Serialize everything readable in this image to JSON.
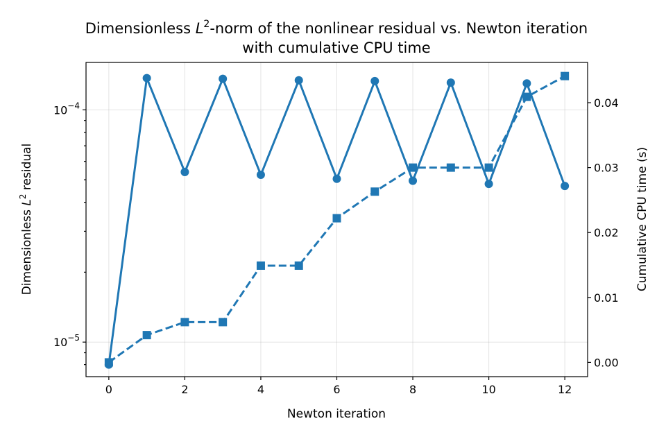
{
  "chart_data": {
    "type": "line",
    "title_line1_prefix": "Dimensionless ",
    "title_line1_math": "L",
    "title_line1_sup": "2",
    "title_line1_suffix": "-norm of the nonlinear residual vs. Newton iteration",
    "title_line2": "with cumulative CPU time",
    "xlabel": "Newton iteration",
    "ylabel_left_prefix": "Dimensionless ",
    "ylabel_left_math": "L",
    "ylabel_left_sup": "2",
    "ylabel_left_suffix": " residual",
    "ylabel_right": "Cumulative CPU time (s)",
    "x_ticks": [
      0,
      2,
      4,
      6,
      8,
      10,
      12
    ],
    "xlim": [
      -0.6,
      12.6
    ],
    "ylim_left": [
      7.1e-06,
      0.00016
    ],
    "y_scale_left": "log",
    "y_ticks_left": [
      {
        "value": 1e-05,
        "base": "10",
        "exp": "−5"
      },
      {
        "value": 0.0001,
        "base": "10",
        "exp": "−4"
      }
    ],
    "ylim_right": [
      -0.0022,
      0.0462
    ],
    "y_ticks_right": [
      0.0,
      0.01,
      0.02,
      0.03,
      0.04
    ],
    "y_ticks_right_labels": [
      "0.00",
      "0.01",
      "0.02",
      "0.03",
      "0.04"
    ],
    "grid": true,
    "color": "#1f77b4",
    "series": [
      {
        "axis": "left",
        "marker": "circle",
        "linestyle": "solid",
        "x": [
          0,
          1,
          2,
          3,
          4,
          5,
          6,
          7,
          8,
          9,
          10,
          11,
          12
        ],
        "values": [
          8e-06,
          0.000137,
          5.4e-05,
          0.000136,
          5.25e-05,
          0.000134,
          5.05e-05,
          0.000133,
          4.95e-05,
          0.000131,
          4.8e-05,
          0.00013,
          4.7e-05
        ]
      },
      {
        "axis": "right",
        "marker": "square",
        "linestyle": "dashed",
        "x": [
          0,
          1,
          2,
          3,
          4,
          5,
          6,
          7,
          8,
          9,
          10,
          11,
          12
        ],
        "values": [
          0.0,
          0.0042,
          0.0062,
          0.0062,
          0.0149,
          0.0149,
          0.0222,
          0.0263,
          0.03,
          0.03,
          0.03,
          0.0409,
          0.0441
        ]
      }
    ]
  }
}
